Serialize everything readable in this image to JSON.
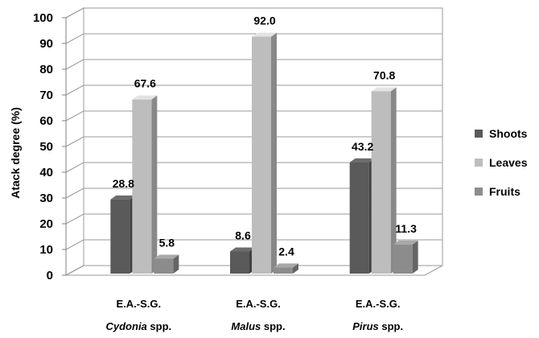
{
  "chart_data": {
    "type": "bar",
    "ylabel": "Atack degree (%)",
    "ylim": [
      0,
      100
    ],
    "yticks": [
      0,
      10,
      20,
      30,
      40,
      50,
      60,
      70,
      80,
      90,
      100
    ],
    "grid": true,
    "legend_position": "right",
    "categories": [
      {
        "line1": "E.A.-S.G.",
        "genus": "Cydonia",
        "suffix": " spp."
      },
      {
        "line1": "E.A.-S.G.",
        "genus": "Malus",
        "suffix": " spp."
      },
      {
        "line1": "E.A.-S.G.",
        "genus": "Pirus",
        "suffix": " spp."
      }
    ],
    "series": [
      {
        "name": "Shoots",
        "values": [
          28.8,
          8.6,
          43.2
        ],
        "labels": [
          "28.8",
          "8.6",
          "43.2"
        ],
        "color": "#5a5a5a"
      },
      {
        "name": "Leaves",
        "values": [
          67.6,
          92.0,
          70.8
        ],
        "labels": [
          "67.6",
          "92.0",
          "70.8"
        ],
        "color": "#bdbdbd"
      },
      {
        "name": "Fruits",
        "values": [
          5.8,
          2.4,
          11.3
        ],
        "labels": [
          "5.8",
          "2.4",
          "11.3"
        ],
        "color": "#8c8c8c"
      }
    ]
  }
}
